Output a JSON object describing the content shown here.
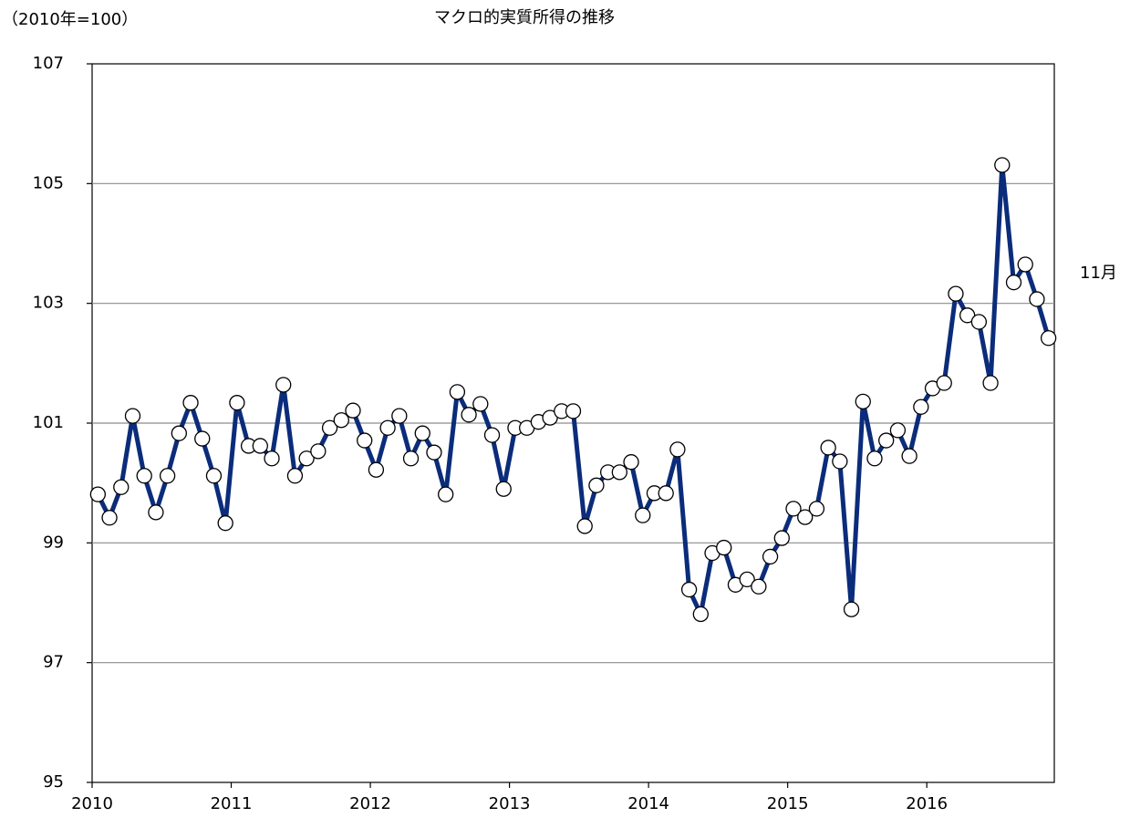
{
  "chart_data": {
    "type": "line",
    "title": "マクロ的実質所得の推移",
    "y_unit": "（2010年=100）",
    "annotation": "11月",
    "categories": [
      "2010",
      null,
      null,
      null,
      null,
      null,
      null,
      null,
      null,
      null,
      null,
      null,
      "2011",
      null,
      null,
      null,
      null,
      null,
      null,
      null,
      null,
      null,
      null,
      null,
      "2012",
      null,
      null,
      null,
      null,
      null,
      null,
      null,
      null,
      null,
      null,
      null,
      "2013",
      null,
      null,
      null,
      null,
      null,
      null,
      null,
      null,
      null,
      null,
      null,
      "2014",
      null,
      null,
      null,
      null,
      null,
      null,
      null,
      null,
      null,
      null,
      null,
      "2015",
      null,
      null,
      null,
      null,
      null,
      null,
      null,
      null,
      null,
      null,
      null,
      "2016",
      null,
      null,
      null,
      null,
      null,
      null,
      null,
      null,
      null,
      null
    ],
    "values": [
      99.81,
      99.42,
      99.93,
      101.12,
      100.12,
      99.51,
      100.12,
      100.83,
      101.34,
      100.74,
      100.12,
      99.33,
      101.34,
      100.62,
      100.62,
      100.41,
      101.64,
      100.12,
      100.41,
      100.53,
      100.92,
      101.05,
      101.21,
      100.71,
      100.22,
      100.92,
      101.12,
      100.41,
      100.83,
      100.51,
      99.81,
      101.52,
      101.14,
      101.32,
      100.8,
      99.9,
      100.92,
      100.92,
      101.02,
      101.09,
      101.2,
      101.2,
      99.28,
      99.96,
      100.18,
      100.18,
      100.35,
      99.46,
      99.83,
      99.83,
      100.56,
      98.22,
      97.81,
      98.83,
      98.92,
      98.3,
      98.39,
      98.27,
      98.77,
      99.08,
      99.57,
      99.43,
      99.57,
      100.59,
      100.36,
      97.89,
      101.36,
      100.41,
      100.71,
      100.88,
      100.45,
      101.27,
      101.58,
      101.67,
      103.16,
      102.8,
      102.69,
      101.67,
      105.31,
      103.35,
      103.65,
      103.07,
      102.42
    ],
    "color": "#0b2c7a",
    "ylim": [
      95,
      107
    ],
    "yticks": [
      95,
      97,
      99,
      101,
      103,
      105,
      107
    ],
    "grid": true
  }
}
